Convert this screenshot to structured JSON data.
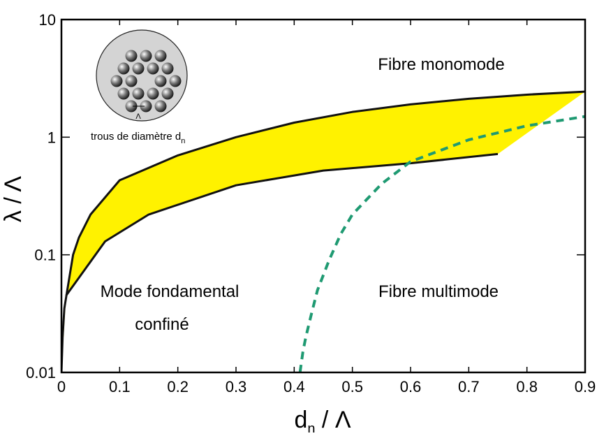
{
  "chart_data": {
    "type": "line",
    "xlabel": [
      "d",
      "n",
      " / Λ"
    ],
    "ylabel": "λ / Λ",
    "xlim": [
      0,
      0.9
    ],
    "ylim": [
      0.01,
      10
    ],
    "xticks": [
      0,
      0.1,
      0.2,
      0.3,
      0.4,
      0.5,
      0.6,
      0.7,
      0.8,
      0.9
    ],
    "yticks": [
      0.01,
      0.1,
      1,
      10
    ],
    "log_y": true,
    "band_color": "#fff200",
    "series": [
      {
        "color": "#111111",
        "dashed": false,
        "x": [
          0,
          0.002,
          0.005,
          0.01,
          0.02,
          0.03,
          0.05,
          0.1,
          0.2,
          0.3,
          0.4,
          0.5,
          0.6,
          0.7,
          0.8,
          0.9
        ],
        "values": [
          0.01,
          0.02,
          0.035,
          0.05,
          0.1,
          0.14,
          0.22,
          0.43,
          0.7,
          1.0,
          1.33,
          1.64,
          1.9,
          2.12,
          2.3,
          2.44
        ]
      },
      {
        "color": "#111111",
        "dashed": false,
        "x": [
          0.008,
          0.075,
          0.15,
          0.3,
          0.45,
          0.6,
          0.75
        ],
        "values": [
          0.045,
          0.13,
          0.22,
          0.39,
          0.52,
          0.6,
          0.72
        ]
      },
      {
        "color": "#1f9a72",
        "dashed": true,
        "x": [
          0.41,
          0.415,
          0.42,
          0.43,
          0.44,
          0.46,
          0.48,
          0.5,
          0.55,
          0.6,
          0.7,
          0.8,
          0.9
        ],
        "values": [
          0.01,
          0.015,
          0.02,
          0.032,
          0.05,
          0.09,
          0.15,
          0.22,
          0.4,
          0.62,
          0.95,
          1.25,
          1.5
        ]
      }
    ],
    "annotations": [
      "Fibre monomode",
      "Fibre multimode",
      "Mode fondamental",
      "confiné"
    ],
    "inset": {
      "caption": [
        "trous de diamètre d",
        "n"
      ],
      "pitch_label": "Λ"
    }
  }
}
